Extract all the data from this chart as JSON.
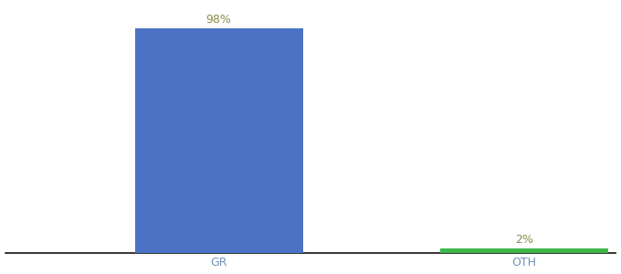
{
  "categories": [
    "GR",
    "OTH"
  ],
  "values": [
    98,
    2
  ],
  "bar_colors": [
    "#4C72C4",
    "#3CB84A"
  ],
  "label_color": "#8B8B4B",
  "label_fontsize": 9,
  "xlabel_fontsize": 9,
  "xlabel_color": "#7090C0",
  "axis_color": "#111111",
  "background_color": "#ffffff",
  "ylim": [
    0,
    108
  ],
  "bar_width": 0.55,
  "xlim": [
    -0.2,
    1.8
  ]
}
